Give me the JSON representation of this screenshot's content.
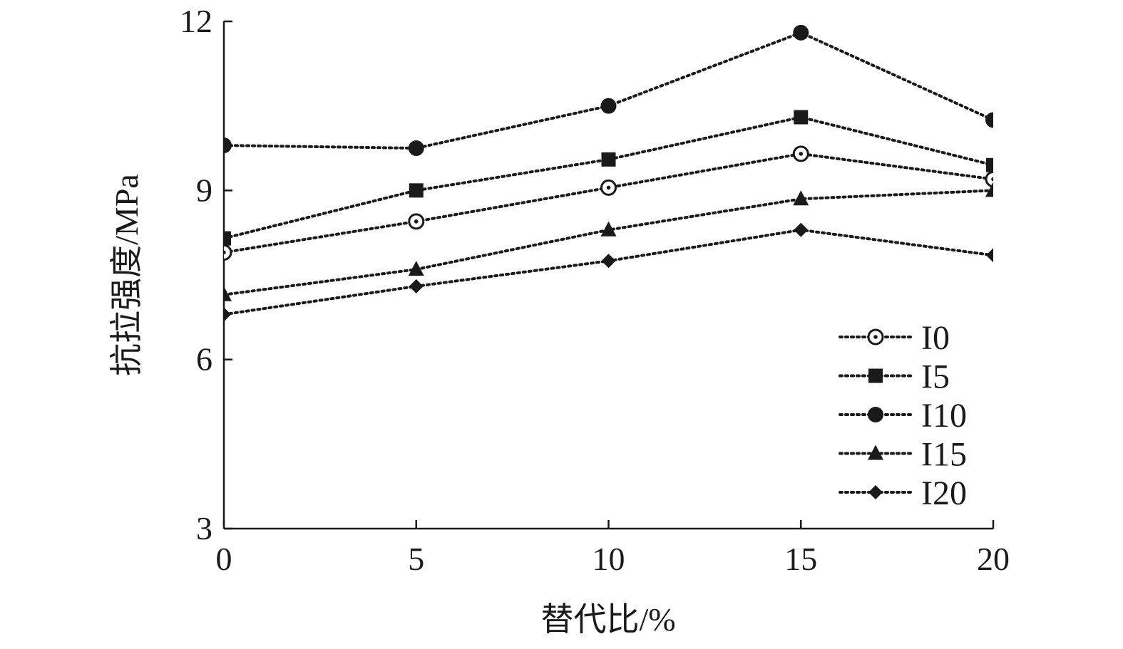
{
  "chart_data": {
    "type": "line",
    "xlabel": "替代比/%",
    "ylabel": "抗拉强度/MPa",
    "x": [
      0,
      5,
      10,
      15,
      20
    ],
    "xticks": [
      "0",
      "5",
      "10",
      "15",
      "20"
    ],
    "yticks": [
      "3",
      "6",
      "9",
      "12"
    ],
    "xlim": [
      0,
      20
    ],
    "ylim": [
      3,
      12
    ],
    "grid": false,
    "legend_position": "bottom-right",
    "series": [
      {
        "name": "I0",
        "marker": "circle-dot-open",
        "values": [
          7.9,
          8.45,
          9.05,
          9.65,
          9.2
        ]
      },
      {
        "name": "I5",
        "marker": "square-filled",
        "values": [
          8.15,
          9.0,
          9.55,
          10.3,
          9.45
        ]
      },
      {
        "name": "I10",
        "marker": "circle-filled",
        "values": [
          9.8,
          9.75,
          10.5,
          11.8,
          10.25
        ]
      },
      {
        "name": "I15",
        "marker": "triangle-filled",
        "values": [
          7.15,
          7.6,
          8.3,
          8.85,
          9.0
        ]
      },
      {
        "name": "I20",
        "marker": "diamond-filled",
        "values": [
          6.8,
          7.3,
          7.75,
          8.3,
          7.85
        ]
      }
    ]
  }
}
